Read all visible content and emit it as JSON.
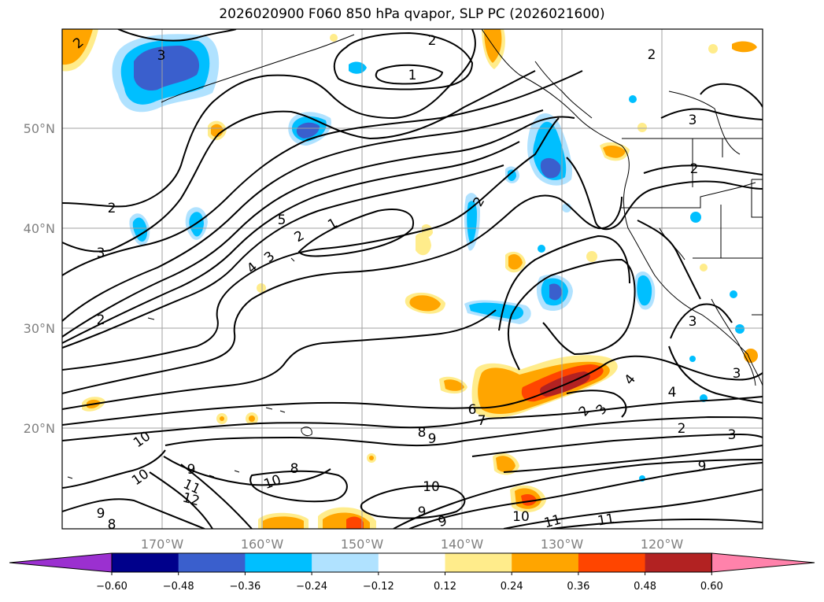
{
  "title": "2026020900 F060 850 hPa qvapor, SLP PC (2026021600)",
  "lat_labels": [
    "50°N",
    "40°N",
    "30°N",
    "20°N"
  ],
  "lon_labels": [
    "170°W",
    "160°W",
    "150°W",
    "140°W",
    "130°W",
    "120°W"
  ],
  "colorbar": {
    "ticks": [
      "−0.60",
      "−0.48",
      "−0.36",
      "−0.24",
      "−0.12",
      "0.12",
      "0.24",
      "0.36",
      "0.48",
      "0.60"
    ],
    "colors": [
      "#9b30d0",
      "#00008b",
      "#3a5fcd",
      "#00bfff",
      "#b0e2ff",
      "#ffffff",
      "#ffec8b",
      "#ffa500",
      "#ff4500",
      "#b22222",
      "#ff82ab"
    ]
  },
  "contour_labels": [
    "2",
    "3",
    "1",
    "2",
    "2",
    "3",
    "2",
    "3",
    "5",
    "2",
    "1",
    "4",
    "3",
    "2",
    "2",
    "6",
    "7",
    "8",
    "9",
    "4",
    "2",
    "3",
    "4",
    "2",
    "3",
    "10",
    "10",
    "9",
    "11",
    "12",
    "9",
    "8",
    "8",
    "10",
    "10",
    "9",
    "9",
    "10",
    "11",
    "11",
    "9",
    "2",
    "3",
    "3"
  ]
}
